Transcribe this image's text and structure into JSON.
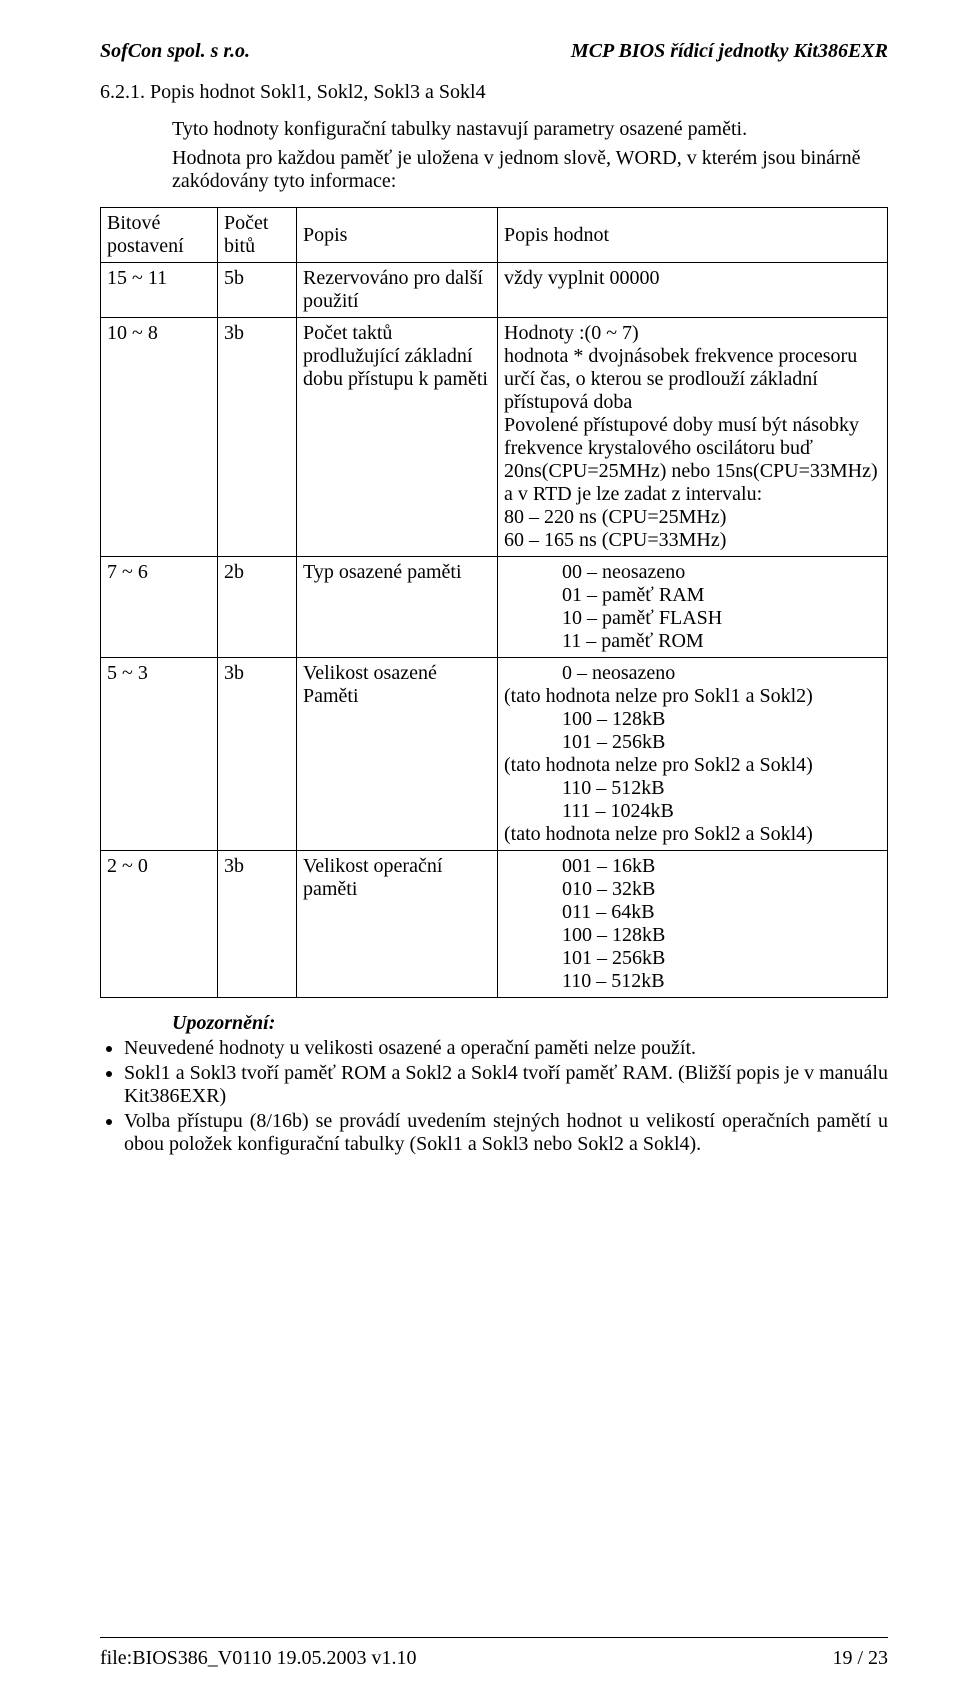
{
  "header": {
    "left": "SofCon spol. s r.o.",
    "right": "MCP BIOS řídicí jednotky Kit386EXR"
  },
  "section": {
    "number": "6.2.1.  Popis hodnot Sokl1, Sokl2, Sokl3 a Sokl4",
    "intro1": "Tyto hodnoty konfigurační tabulky nastavují parametry osazené paměti.",
    "intro2": "Hodnota pro každou paměť je uložena v jednom slově, WORD, v kterém jsou binárně zakódovány tyto informace:"
  },
  "table": {
    "headers": [
      "Bitové\npostavení",
      "Počet\nbitů",
      "Popis",
      "Popis hodnot"
    ],
    "rows": [
      {
        "c1": "15 ~ 11",
        "c2": "5b",
        "c3": "Rezervováno pro další použití",
        "c4": "vždy vyplnit 00000"
      },
      {
        "c1": "10 ~ 8",
        "c2": "3b",
        "c3": "Počet taktů prodlužující základní dobu přístupu k paměti",
        "c4": "Hodnoty :(0 ~ 7)\nhodnota * dvojnásobek frekvence procesoru určí čas, o kterou se prodlouží základní přístupová doba\nPovolené přístupové doby musí být násobky frekvence krystalového oscilátoru buď 20ns(CPU=25MHz) nebo 15ns(CPU=33MHz) a v RTD je lze zadat z intervalu:\n80 – 220 ns (CPU=25MHz)\n60 – 165 ns (CPU=33MHz)"
      },
      {
        "c1": "7 ~ 6",
        "c2": "2b",
        "c3": "Typ osazené paměti",
        "c4_items": [
          "00 – neosazeno",
          "01 – paměť RAM",
          "10 – paměť FLASH",
          "11 – paměť ROM"
        ]
      },
      {
        "c1": "5 ~ 3",
        "c2": "3b",
        "c3": "Velikost osazené Paměti",
        "c4_mixed": [
          {
            "indent": true,
            "text": "0 – neosazeno"
          },
          {
            "indent": false,
            "text": "(tato hodnota nelze pro Sokl1 a Sokl2)"
          },
          {
            "indent": true,
            "text": "100 – 128kB"
          },
          {
            "indent": true,
            "text": "101 – 256kB"
          },
          {
            "indent": false,
            "text": "(tato hodnota nelze pro Sokl2 a Sokl4)"
          },
          {
            "indent": true,
            "text": "110 – 512kB"
          },
          {
            "indent": true,
            "text": "111 – 1024kB"
          },
          {
            "indent": false,
            "text": "(tato hodnota nelze pro Sokl2 a Sokl4)"
          }
        ]
      },
      {
        "c1": "2 ~ 0",
        "c2": "3b",
        "c3": "Velikost operační paměti",
        "c4_items": [
          "001 – 16kB",
          "010 – 32kB",
          "011 – 64kB",
          "100 – 128kB",
          "101 – 256kB",
          "110 – 512kB"
        ]
      }
    ]
  },
  "warning": {
    "heading": "Upozornění:",
    "items": [
      "Neuvedené hodnoty  u velikosti osazené a operační paměti nelze použít.",
      "Sokl1 a Sokl3 tvoří paměť ROM a Sokl2 a Sokl4 tvoří paměť RAM. (Bližší popis je v manuálu Kit386EXR)",
      "Volba přístupu (8/16b) se provádí uvedením stejných hodnot u velikostí operačních pamětí u obou položek konfigurační tabulky (Sokl1 a Sokl3 nebo Sokl2 a Sokl4)."
    ]
  },
  "footer": {
    "left": "file:BIOS386_V0110  19.05.2003  v1.10",
    "right": "19 / 23"
  }
}
